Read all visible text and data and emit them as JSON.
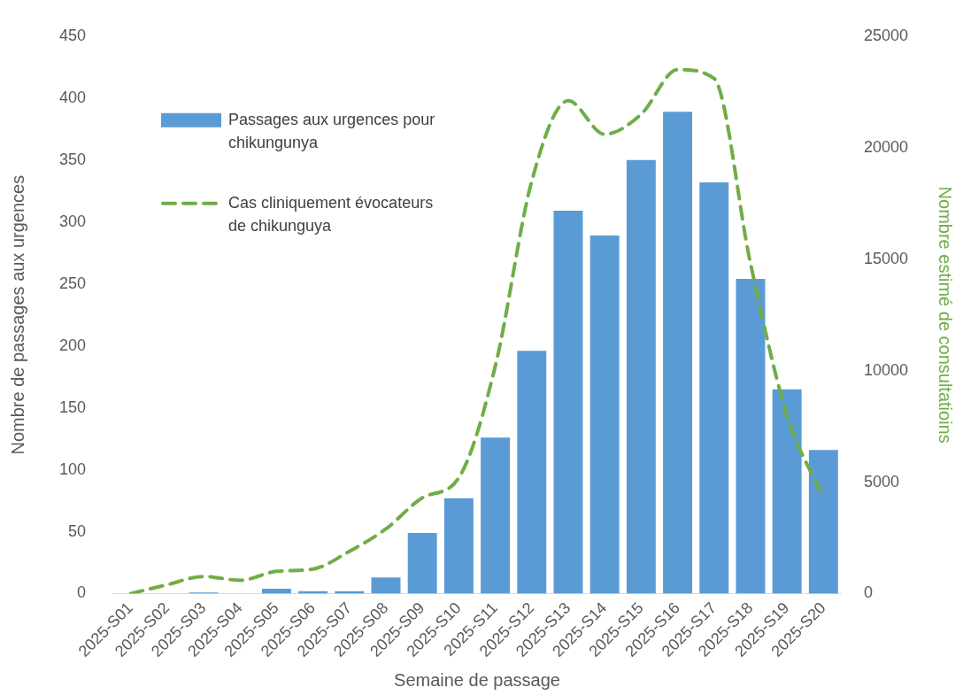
{
  "chart_data": {
    "type": "bar",
    "xlabel": "Semaine de passage",
    "ylabel": "Nombre de passages aux urgences",
    "y2label": "Nombre estimé de consultatioins",
    "categories": [
      "2025-S01",
      "2025-S02",
      "2025-S03",
      "2025-S04",
      "2025-S05",
      "2025-S06",
      "2025-S07",
      "2025-S08",
      "2025-S09",
      "2025-S10",
      "2025-S11",
      "2025-S12",
      "2025-S13",
      "2025-S14",
      "2025-S15",
      "2025-S16",
      "2025-S17",
      "2025-S18",
      "2025-S19",
      "2025-S20"
    ],
    "series": [
      {
        "name": "Passages aux urgences pour chikungunya",
        "color": "#5b9bd5",
        "values": [
          0,
          0,
          1,
          0,
          4,
          2,
          2,
          13,
          49,
          77,
          126,
          196,
          309,
          289,
          350,
          389,
          332,
          254,
          165,
          116
        ]
      },
      {
        "name": "Cas cliniquement évocateurs de chikunguya",
        "type": "line",
        "axis": "y2",
        "color": "#70ad47",
        "line_style": "dashed",
        "values": [
          0,
          400,
          770,
          600,
          1000,
          1100,
          1900,
          2900,
          4300,
          5200,
          10200,
          18500,
          22100,
          20600,
          21500,
          23500,
          23100,
          14800,
          8000,
          4300
        ]
      }
    ],
    "ylim": [
      0,
      450
    ],
    "yticks": [
      0,
      50,
      100,
      150,
      200,
      250,
      300,
      350,
      400,
      450
    ],
    "y2lim": [
      0,
      25000
    ],
    "y2ticks": [
      0,
      5000,
      10000,
      15000,
      20000,
      25000
    ],
    "grid": false,
    "legend": "top left",
    "marker": "none"
  }
}
